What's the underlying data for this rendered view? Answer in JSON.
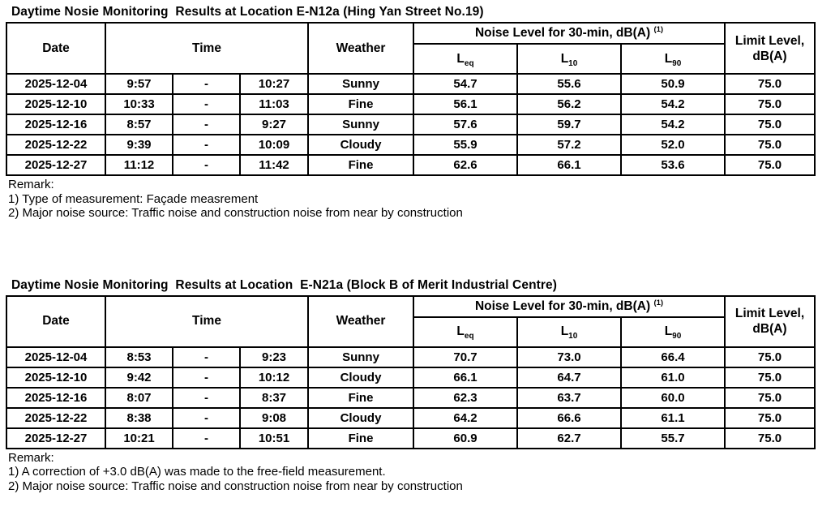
{
  "page": {
    "background": "#ffffff",
    "text_color": "#000000",
    "border_color": "#000000"
  },
  "header_labels": {
    "date": "Date",
    "time": "Time",
    "weather": "Weather",
    "noise_group": "Noise Level for 30-min, dB(A)",
    "noise_group_sup": "(1)",
    "l_base": "L",
    "leq_sub": "eq",
    "l10_sub": "10",
    "l90_sub": "90",
    "limit_line1": "Limit Level,",
    "limit_line2": "dB(A)"
  },
  "tables": [
    {
      "title": "Daytime Nosie Monitoring  Results at Location E-N12a (Hing Yan Street No.19)",
      "rows": [
        {
          "date": "2025-12-04",
          "time_start": "9:57",
          "time_sep": "-",
          "time_end": "10:27",
          "weather": "Sunny",
          "leq": "54.7",
          "l10": "55.6",
          "l90": "50.9",
          "limit": "75.0"
        },
        {
          "date": "2025-12-10",
          "time_start": "10:33",
          "time_sep": "-",
          "time_end": "11:03",
          "weather": "Fine",
          "leq": "56.1",
          "l10": "56.2",
          "l90": "54.2",
          "limit": "75.0"
        },
        {
          "date": "2025-12-16",
          "time_start": "8:57",
          "time_sep": "-",
          "time_end": "9:27",
          "weather": "Sunny",
          "leq": "57.6",
          "l10": "59.7",
          "l90": "54.2",
          "limit": "75.0"
        },
        {
          "date": "2025-12-22",
          "time_start": "9:39",
          "time_sep": "-",
          "time_end": "10:09",
          "weather": "Cloudy",
          "leq": "55.9",
          "l10": "57.2",
          "l90": "52.0",
          "limit": "75.0"
        },
        {
          "date": "2025-12-27",
          "time_start": "11:12",
          "time_sep": "-",
          "time_end": "11:42",
          "weather": "Fine",
          "leq": "62.6",
          "l10": "66.1",
          "l90": "53.6",
          "limit": "75.0"
        }
      ],
      "remark_label": "Remark:",
      "remark_lines": [
        "1) Type of measurement: Façade measrement",
        "2) Major noise source: Traffic noise and construction noise from near by construction"
      ]
    },
    {
      "title": "Daytime Nosie Monitoring  Results at Location  E-N21a (Block B of Merit Industrial Centre)",
      "rows": [
        {
          "date": "2025-12-04",
          "time_start": "8:53",
          "time_sep": "-",
          "time_end": "9:23",
          "weather": "Sunny",
          "leq": "70.7",
          "l10": "73.0",
          "l90": "66.4",
          "limit": "75.0"
        },
        {
          "date": "2025-12-10",
          "time_start": "9:42",
          "time_sep": "-",
          "time_end": "10:12",
          "weather": "Cloudy",
          "leq": "66.1",
          "l10": "64.7",
          "l90": "61.0",
          "limit": "75.0"
        },
        {
          "date": "2025-12-16",
          "time_start": "8:07",
          "time_sep": "-",
          "time_end": "8:37",
          "weather": "Fine",
          "leq": "62.3",
          "l10": "63.7",
          "l90": "60.0",
          "limit": "75.0"
        },
        {
          "date": "2025-12-22",
          "time_start": "8:38",
          "time_sep": "-",
          "time_end": "9:08",
          "weather": "Cloudy",
          "leq": "64.2",
          "l10": "66.6",
          "l90": "61.1",
          "limit": "75.0"
        },
        {
          "date": "2025-12-27",
          "time_start": "10:21",
          "time_sep": "-",
          "time_end": "10:51",
          "weather": "Fine",
          "leq": "60.9",
          "l10": "62.7",
          "l90": "55.7",
          "limit": "75.0"
        }
      ],
      "remark_label": "Remark:",
      "remark_lines": [
        "1) A correction of +3.0 dB(A) was made to the free-field measurement.",
        "2) Major noise source: Traffic noise and construction noise from near by construction"
      ]
    }
  ]
}
